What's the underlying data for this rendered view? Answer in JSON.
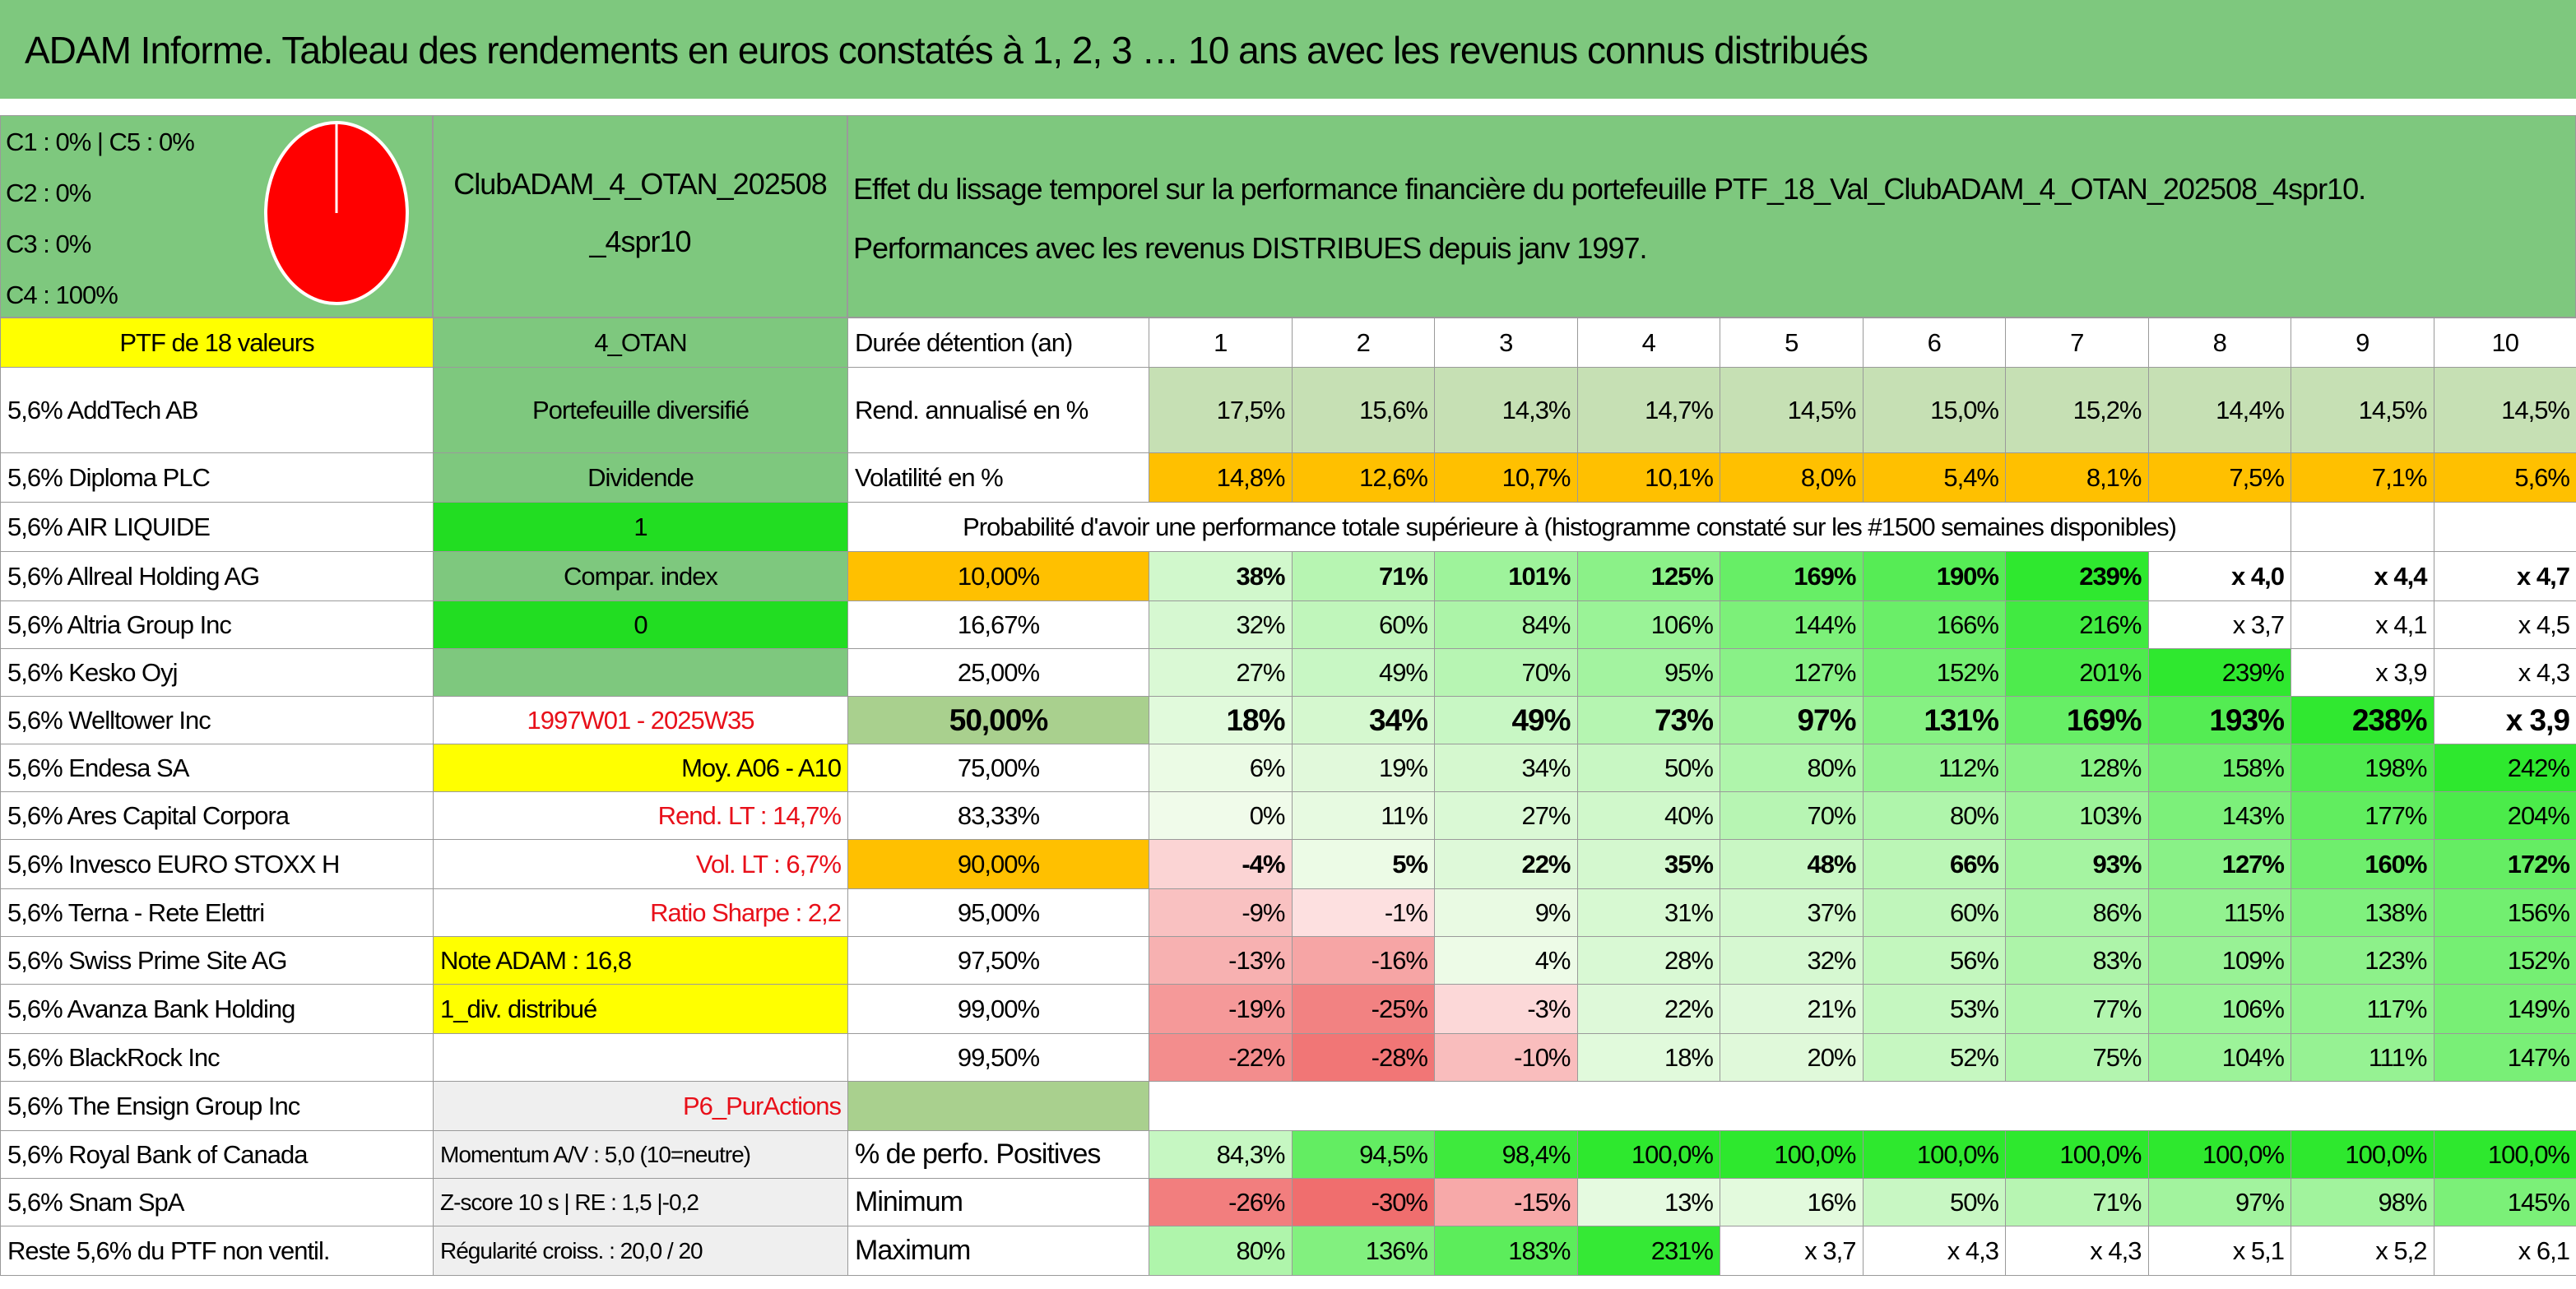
{
  "title": "ADAM Informe. Tableau des rendements en euros constatés à 1, 2, 3 … 10 ans avec les revenus connus distribués",
  "allocation": [
    "C1 : 0% | C5 : 0%",
    "C2 : 0%",
    "C3 : 0%",
    "C4 : 100%"
  ],
  "portfolio_name": [
    "ClubADAM_4_OTAN_202508",
    "_4spr10"
  ],
  "description": [
    "Effet du lissage temporel sur la performance financière du portefeuille PTF_18_Val_ClubADAM_4_OTAN_202508_4spr10.",
    "Performances avec les revenus DISTRIBUES depuis janv 1997."
  ],
  "rows": [
    {
      "holding": "PTF de 18 valeurs",
      "info": "4_OTAN",
      "cells": [
        "Durée détention (an)",
        "1",
        "2",
        "3",
        "4",
        "5",
        "6",
        "7",
        "8",
        "9",
        "10"
      ]
    },
    {
      "holding": "5,6% AddTech AB",
      "info": "Portefeuille diversifié",
      "cells": [
        "Rend. annualisé en %",
        "17,5%",
        "15,6%",
        "14,3%",
        "14,7%",
        "14,5%",
        "15,0%",
        "15,2%",
        "14,4%",
        "14,5%",
        "14,5%"
      ]
    },
    {
      "holding": "5,6% Diploma PLC",
      "info": "Dividende",
      "cells": [
        "Volatilité en %",
        "14,8%",
        "12,6%",
        "10,7%",
        "10,1%",
        "8,0%",
        "5,4%",
        "8,1%",
        "7,5%",
        "7,1%",
        "5,6%"
      ]
    },
    {
      "holding": "5,6% AIR LIQUIDE",
      "info": "1",
      "cells": [
        "Probabilité d'avoir une performance totale supérieure à (histogramme constaté sur les #1500 semaines disponibles)"
      ]
    },
    {
      "holding": "5,6% Allreal Holding AG",
      "info": "Compar. index",
      "cells": [
        "10,00%",
        "38%",
        "71%",
        "101%",
        "125%",
        "169%",
        "190%",
        "239%",
        "x 4,0",
        "x 4,4",
        "x 4,7"
      ]
    },
    {
      "holding": "5,6% Altria Group Inc",
      "info": "0",
      "cells": [
        "16,67%",
        "32%",
        "60%",
        "84%",
        "106%",
        "144%",
        "166%",
        "216%",
        "x 3,7",
        "x 4,1",
        "x 4,5"
      ]
    },
    {
      "holding": "5,6% Kesko Oyj",
      "info": null,
      "cells": [
        "25,00%",
        "27%",
        "49%",
        "70%",
        "95%",
        "127%",
        "152%",
        "201%",
        "239%",
        "x 3,9",
        "x 4,3"
      ]
    },
    {
      "holding": "5,6% Welltower Inc",
      "info": "1997W01 - 2025W35",
      "cells": [
        "50,00%",
        "18%",
        "34%",
        "49%",
        "73%",
        "97%",
        "131%",
        "169%",
        "193%",
        "238%",
        "x 3,9"
      ]
    },
    {
      "holding": "5,6% Endesa SA",
      "info": "Moy. A06 - A10",
      "cells": [
        "75,00%",
        "6%",
        "19%",
        "34%",
        "50%",
        "80%",
        "112%",
        "128%",
        "158%",
        "198%",
        "242%"
      ]
    },
    {
      "holding": "5,6% Ares Capital Corpora",
      "info": "Rend. LT : 14,7%",
      "cells": [
        "83,33%",
        "0%",
        "11%",
        "27%",
        "40%",
        "70%",
        "80%",
        "103%",
        "143%",
        "177%",
        "204%"
      ]
    },
    {
      "holding": "5,6% Invesco EURO STOXX H",
      "info": "Vol. LT : 6,7%",
      "cells": [
        "90,00%",
        "-4%",
        "5%",
        "22%",
        "35%",
        "48%",
        "66%",
        "93%",
        "127%",
        "160%",
        "172%"
      ]
    },
    {
      "holding": "5,6% Terna - Rete Elettri",
      "info": "Ratio Sharpe : 2,2",
      "cells": [
        "95,00%",
        "-9%",
        "-1%",
        "9%",
        "31%",
        "37%",
        "60%",
        "86%",
        "115%",
        "138%",
        "156%"
      ]
    },
    {
      "holding": "5,6% Swiss Prime Site AG",
      "info": "Note ADAM : 16,8",
      "cells": [
        "97,50%",
        "-13%",
        "-16%",
        "4%",
        "28%",
        "32%",
        "56%",
        "83%",
        "109%",
        "123%",
        "152%"
      ]
    },
    {
      "holding": "5,6% Avanza Bank Holding",
      "info": "1_div. distribué",
      "cells": [
        "99,00%",
        "-19%",
        "-25%",
        "-3%",
        "22%",
        "21%",
        "53%",
        "77%",
        "106%",
        "117%",
        "149%"
      ]
    },
    {
      "holding": "5,6% BlackRock Inc",
      "info": null,
      "cells": [
        "99,50%",
        "-22%",
        "-28%",
        "-10%",
        "18%",
        "20%",
        "52%",
        "75%",
        "104%",
        "111%",
        "147%"
      ]
    },
    {
      "holding": "5,6% The Ensign Group Inc",
      "info": "P6_PurActions"
    },
    {
      "holding": "5,6% Royal Bank of Canada",
      "info": "Momentum A/V : 5,0 (10=neutre)",
      "cells": [
        "% de perfo. Positives",
        "84,3%",
        "94,5%",
        "98,4%",
        "100,0%",
        "100,0%",
        "100,0%",
        "100,0%",
        "100,0%",
        "100,0%",
        "100,0%"
      ]
    },
    {
      "holding": "5,6% Snam SpA",
      "info": "Z-score 10 s | RE : 1,5 |-0,2",
      "cells": [
        "Minimum",
        "-26%",
        "-30%",
        "-15%",
        "13%",
        "16%",
        "50%",
        "71%",
        "97%",
        "98%",
        "145%"
      ]
    },
    {
      "holding": "Reste 5,6% du PTF non ventil.",
      "info": "Régularité croiss. : 20,0 / 20",
      "cells": [
        "Maximum",
        "80%",
        "136%",
        "183%",
        "231%",
        "x 3,7",
        "x 4,3",
        "x 4,3",
        "x 5,1",
        "x 5,2",
        "x 6,1"
      ]
    }
  ]
}
